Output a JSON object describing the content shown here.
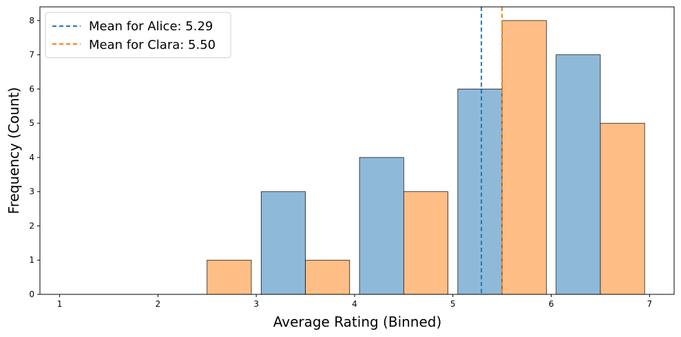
{
  "chart_data": {
    "type": "bar",
    "title": "",
    "xlabel": "Average Rating (Binned)",
    "ylabel": "Frequency (Count)",
    "xlim": [
      0.8,
      7.25
    ],
    "ylim": [
      0,
      8.4
    ],
    "xticks": [
      1,
      2,
      3,
      4,
      5,
      6,
      7
    ],
    "yticks": [
      0,
      1,
      2,
      3,
      4,
      5,
      6,
      7,
      8
    ],
    "grid": false,
    "legend_position": "top-left",
    "series": [
      {
        "name": "Alice",
        "color": "#8fb9d9",
        "bins": [
          {
            "x0": 3.05,
            "x1": 3.5,
            "count": 3
          },
          {
            "x0": 4.05,
            "x1": 4.5,
            "count": 4
          },
          {
            "x0": 5.05,
            "x1": 5.5,
            "count": 6
          },
          {
            "x0": 6.05,
            "x1": 6.5,
            "count": 7
          }
        ]
      },
      {
        "name": "Clara",
        "color": "#febe86",
        "bins": [
          {
            "x0": 2.5,
            "x1": 2.95,
            "count": 1
          },
          {
            "x0": 3.5,
            "x1": 3.95,
            "count": 1
          },
          {
            "x0": 4.5,
            "x1": 4.95,
            "count": 3
          },
          {
            "x0": 5.5,
            "x1": 5.95,
            "count": 8
          },
          {
            "x0": 6.5,
            "x1": 6.95,
            "count": 5
          }
        ]
      }
    ],
    "mean_lines": [
      {
        "value": 5.29,
        "label": "Mean for Alice: 5.29",
        "color": "#1f77b4"
      },
      {
        "value": 5.5,
        "label": "Mean for Clara: 5.50",
        "color": "#ff7f0e"
      }
    ]
  }
}
